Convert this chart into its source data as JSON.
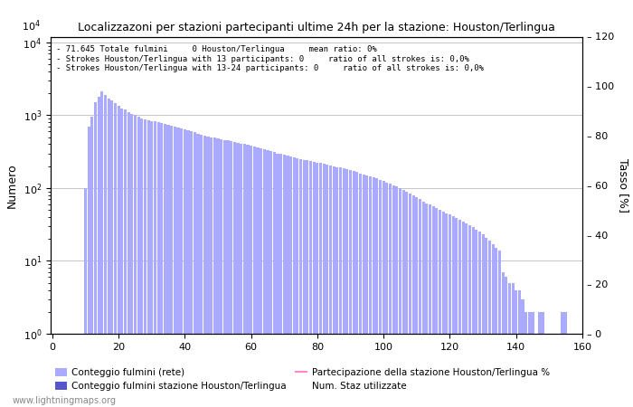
{
  "title": "Localizzazoni per stazioni partecipanti ultime 24h per la stazione: Houston/Terlingua",
  "ylabel_left": "Numero",
  "ylabel_right": "Tasso [%]",
  "xlim": [
    0,
    160
  ],
  "ylim_right": [
    0,
    120
  ],
  "xticks": [
    0,
    20,
    40,
    60,
    80,
    100,
    120,
    140,
    160
  ],
  "yticks_right": [
    0,
    20,
    40,
    60,
    80,
    100,
    120
  ],
  "info_lines": [
    "71.645 Totale fulmini     0 Houston/Terlingua     mean ratio: 0%",
    "Strokes Houston/Terlingua with 13 participants: 0     ratio of all strokes is: 0,0%",
    "Strokes Houston/Terlingua with 13-24 participants: 0     ratio of all strokes is: 0,0%"
  ],
  "bar_color_light": "#aaaaff",
  "bar_color_dark": "#5555cc",
  "line_color": "#ff88cc",
  "background_color": "#ffffff",
  "grid_color": "#bbbbbb",
  "watermark": "www.lightningmaps.org",
  "legend_labels": [
    "Conteggio fulmini (rete)",
    "Conteggio fulmini stazione Houston/Terlingua",
    "Partecipazione della stazione Houston/Terlingua %",
    "Num. Staz utilizzate"
  ],
  "bar_heights": [
    0,
    0,
    0,
    0,
    0,
    0,
    0,
    0,
    0,
    0,
    100,
    700,
    950,
    1500,
    1800,
    2100,
    1900,
    1700,
    1600,
    1450,
    1350,
    1250,
    1200,
    1100,
    1050,
    1000,
    950,
    900,
    880,
    860,
    840,
    820,
    800,
    780,
    760,
    740,
    720,
    700,
    680,
    660,
    640,
    620,
    600,
    580,
    560,
    540,
    520,
    510,
    500,
    490,
    480,
    470,
    460,
    450,
    440,
    430,
    420,
    410,
    400,
    390,
    380,
    370,
    360,
    350,
    340,
    330,
    320,
    310,
    300,
    295,
    290,
    280,
    270,
    265,
    260,
    250,
    245,
    240,
    235,
    230,
    225,
    220,
    215,
    210,
    205,
    200,
    195,
    190,
    185,
    180,
    175,
    170,
    165,
    160,
    155,
    150,
    145,
    140,
    135,
    130,
    125,
    120,
    115,
    110,
    105,
    100,
    95,
    90,
    85,
    80,
    75,
    70,
    65,
    62,
    59,
    56,
    53,
    50,
    47,
    45,
    43,
    41,
    39,
    37,
    35,
    33,
    31,
    29,
    27,
    25,
    23,
    21,
    19,
    17,
    15,
    14,
    7,
    6,
    5,
    5,
    4,
    4,
    3,
    2,
    2,
    2,
    1,
    2,
    2,
    1,
    1,
    1,
    1,
    1,
    2,
    2,
    1,
    1,
    1,
    1
  ]
}
